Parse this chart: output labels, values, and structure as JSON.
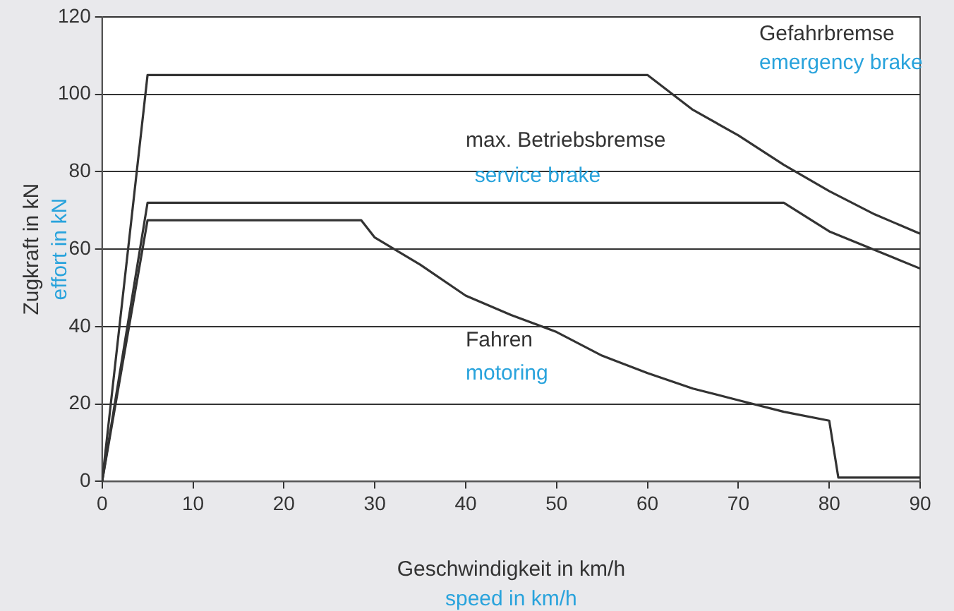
{
  "chart_data": {
    "type": "line",
    "xlabel": "Geschwindigkeit in km/h\nspeed in km/h",
    "ylabel": "Zugkraft in kN\neffort in kN",
    "xlim": [
      0,
      90
    ],
    "xticks": [
      0,
      10,
      20,
      30,
      40,
      50,
      60,
      70,
      80,
      90
    ],
    "ylim": [
      0,
      120
    ],
    "yticks": [
      0,
      20,
      40,
      60,
      80,
      100,
      120
    ],
    "grid": "y",
    "marker": "none",
    "line_style": "solid",
    "series": [
      {
        "color": "#333333",
        "x": [
          0,
          5,
          60,
          65,
          70,
          75,
          80,
          85,
          90
        ],
        "values": [
          0,
          105,
          105,
          96,
          89.4,
          81.8,
          75,
          69,
          64
        ]
      },
      {
        "color": "#333333",
        "x": [
          0,
          5,
          75,
          80,
          90
        ],
        "values": [
          0,
          72,
          72,
          64.6,
          55
        ]
      },
      {
        "color": "#333333",
        "x": [
          0,
          5,
          28.5,
          30,
          35,
          40,
          45,
          50,
          55,
          60,
          65,
          70,
          75,
          80,
          81,
          90
        ],
        "values": [
          0,
          67.5,
          67.5,
          63,
          56,
          48,
          43,
          38.6,
          32.5,
          28,
          24,
          21,
          18,
          15.7,
          1,
          1
        ]
      }
    ],
    "annotations": [
      "Gefahrbremse",
      "emergency brake",
      "max. Betriebsbremse",
      "service brake",
      "Fahren",
      "motoring"
    ]
  }
}
